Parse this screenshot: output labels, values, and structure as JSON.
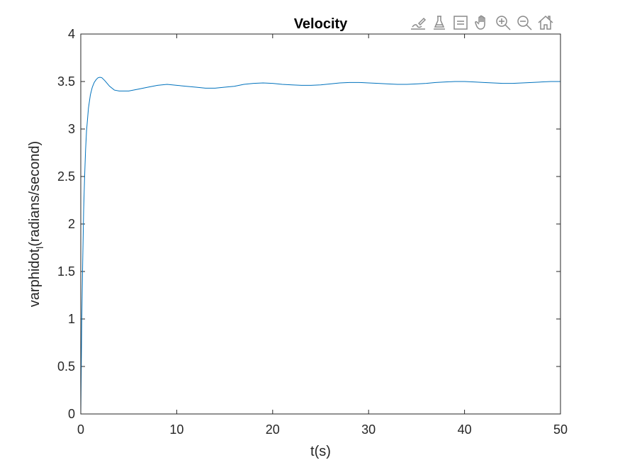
{
  "chart_data": {
    "type": "line",
    "title": "Velocity",
    "xlabel": "t(s)",
    "ylabel_main": "varphidot",
    "ylabel_sub": "l",
    "ylabel_tail": "(radians/second)",
    "xlim": [
      0,
      50
    ],
    "ylim": [
      0,
      4
    ],
    "xticks": [
      0,
      10,
      20,
      30,
      40,
      50
    ],
    "xtick_labels": [
      "0",
      "10",
      "20",
      "30",
      "40",
      "50"
    ],
    "yticks": [
      0,
      0.5,
      1,
      1.5,
      2,
      2.5,
      3,
      3.5,
      4
    ],
    "ytick_labels": [
      "0",
      "0.5",
      "1",
      "1.5",
      "2",
      "2.5",
      "3",
      "3.5",
      "4"
    ],
    "grid": false,
    "series": [
      {
        "color": "#0072BD",
        "x": [
          0,
          0.1,
          0.2,
          0.3,
          0.4,
          0.5,
          0.6,
          0.8,
          1.0,
          1.2,
          1.4,
          1.6,
          1.8,
          2.0,
          2.2,
          2.5,
          3.0,
          3.5,
          4.0,
          4.5,
          5.0,
          6.0,
          7.0,
          8.0,
          9.0,
          10.0,
          11.0,
          12.0,
          13.0,
          14.0,
          15.0,
          16.0,
          17.0,
          18.0,
          19.0,
          20.0,
          21.0,
          22.0,
          23.0,
          24.0,
          25.0,
          26.0,
          27.0,
          28.0,
          29.0,
          30.0,
          31.0,
          32.0,
          33.0,
          34.0,
          35.0,
          36.0,
          37.0,
          38.0,
          39.0,
          40.0,
          41.0,
          42.0,
          43.0,
          44.0,
          45.0,
          46.0,
          47.0,
          48.0,
          49.0,
          50.0
        ],
        "y": [
          0,
          0.95,
          1.6,
          2.15,
          2.5,
          2.78,
          2.98,
          3.22,
          3.36,
          3.44,
          3.49,
          3.52,
          3.54,
          3.545,
          3.54,
          3.51,
          3.45,
          3.41,
          3.4,
          3.4,
          3.4,
          3.42,
          3.44,
          3.46,
          3.47,
          3.46,
          3.45,
          3.44,
          3.43,
          3.43,
          3.44,
          3.45,
          3.47,
          3.48,
          3.485,
          3.48,
          3.47,
          3.465,
          3.46,
          3.46,
          3.465,
          3.475,
          3.485,
          3.49,
          3.49,
          3.485,
          3.48,
          3.475,
          3.47,
          3.47,
          3.475,
          3.48,
          3.49,
          3.495,
          3.5,
          3.5,
          3.495,
          3.49,
          3.485,
          3.48,
          3.48,
          3.485,
          3.49,
          3.495,
          3.5,
          3.5
        ]
      }
    ]
  },
  "toolbar": {
    "icons": [
      "brush-icon",
      "data-tips-icon",
      "legend-icon",
      "pan-hand-icon",
      "zoom-in-icon",
      "zoom-out-icon",
      "home-icon"
    ]
  }
}
